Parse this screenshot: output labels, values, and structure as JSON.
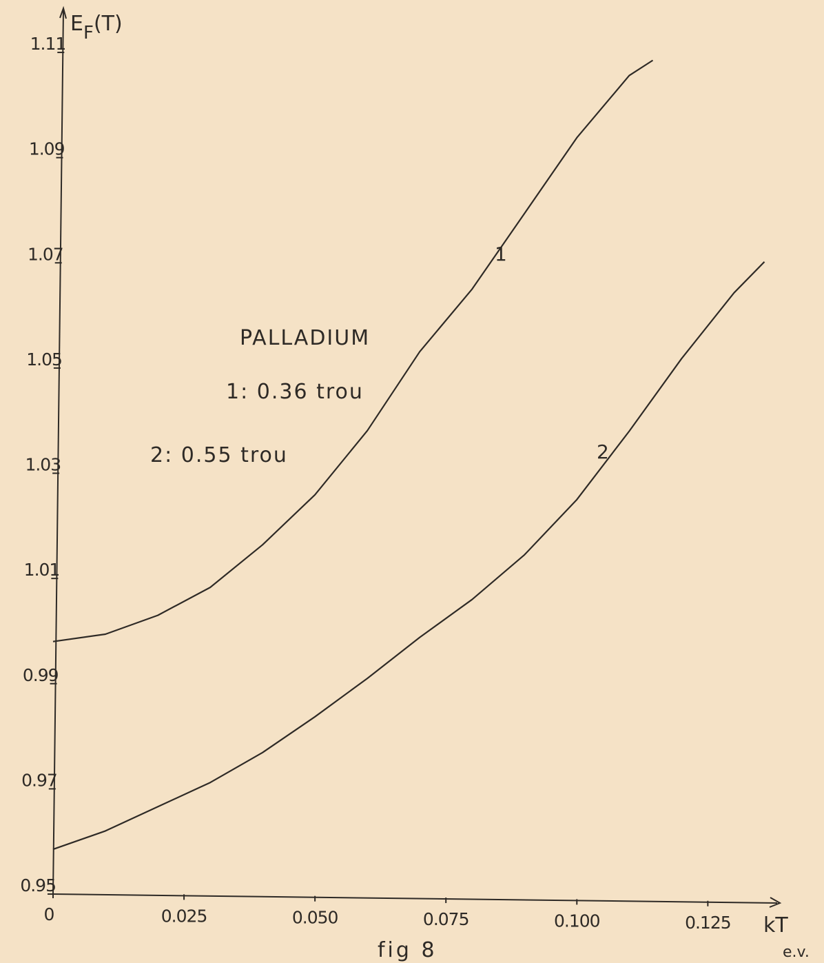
{
  "chart_data": {
    "type": "line",
    "ylabel_parts": [
      "E",
      "F",
      "(T)"
    ],
    "xlabel": "kT",
    "xunit": "e.v.",
    "caption": "fig 8",
    "annotations": [
      "PALLADIUM",
      "1: 0.36 trou",
      "2: 0.55 trou"
    ],
    "xlim": [
      0,
      0.1385
    ],
    "ylim": [
      0.95,
      1.118
    ],
    "xticks": [
      0,
      0.025,
      {
        "value": 0.05,
        "label": "0.050"
      },
      0.075,
      {
        "value": 0.1,
        "label": "0.100"
      },
      0.125
    ],
    "yticks": [
      0.95,
      0.97,
      0.99,
      1.01,
      1.03,
      1.05,
      1.07,
      1.09,
      1.11
    ],
    "series": [
      {
        "name": "1",
        "color": "#2e2a26",
        "x": [
          0,
          0.01,
          0.02,
          0.03,
          0.04,
          0.05,
          0.06,
          0.07,
          0.08,
          0.09,
          0.1,
          0.11,
          0.1145
        ],
        "y": [
          0.998,
          0.9994,
          1.003,
          1.0083,
          1.0164,
          1.0259,
          1.0381,
          1.0531,
          1.065,
          1.0794,
          1.0938,
          1.1056,
          1.1085
        ]
      },
      {
        "name": "2",
        "color": "#2e2a26",
        "x": [
          0,
          0.01,
          0.02,
          0.03,
          0.04,
          0.05,
          0.06,
          0.07,
          0.08,
          0.09,
          0.1,
          0.11,
          0.12,
          0.13,
          0.1358
        ],
        "y": [
          0.9585,
          0.962,
          0.9666,
          0.9712,
          0.9769,
          0.9837,
          0.991,
          0.9988,
          1.006,
          1.0145,
          1.025,
          1.038,
          1.0518,
          1.0643,
          1.0702
        ]
      }
    ]
  }
}
